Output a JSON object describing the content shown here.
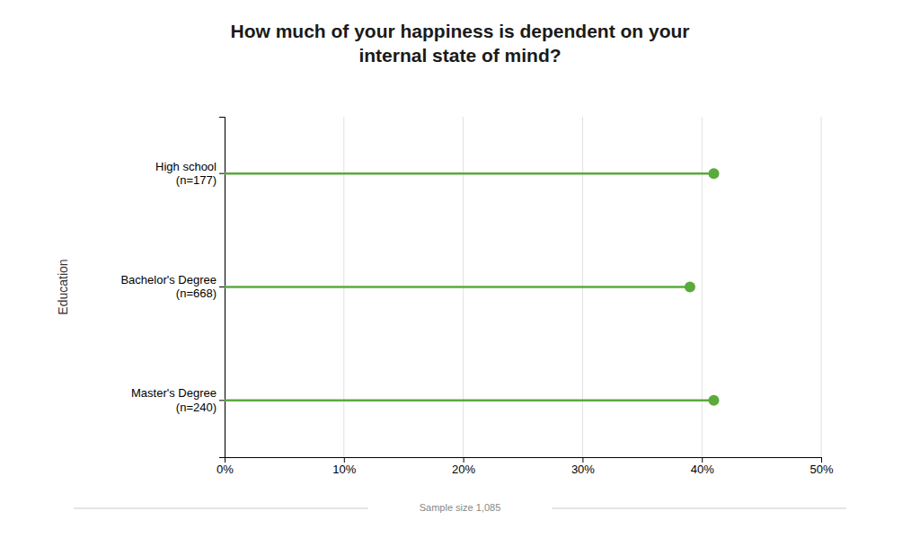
{
  "chart_data": {
    "type": "lollipop",
    "title": "How much of your happiness is dependent on your\ninternal state of mind?",
    "ylabel": "Education",
    "categories": [
      "High school\n(n=177)",
      "Bachelor's Degree\n(n=668)",
      "Master's Degree\n(n=240)"
    ],
    "values": [
      0.41,
      0.39,
      0.41
    ],
    "color": "#5aaa3c",
    "xlim": [
      0,
      0.5
    ],
    "xticks": [
      {
        "value": 0.0,
        "label": "0%"
      },
      {
        "value": 0.1,
        "label": "10%"
      },
      {
        "value": 0.2,
        "label": "20%"
      },
      {
        "value": 0.3,
        "label": "30%"
      },
      {
        "value": 0.4,
        "label": "40%"
      },
      {
        "value": 0.5,
        "label": "50%"
      }
    ],
    "grid": true,
    "annotations": [
      "Sample size 1,085"
    ]
  }
}
